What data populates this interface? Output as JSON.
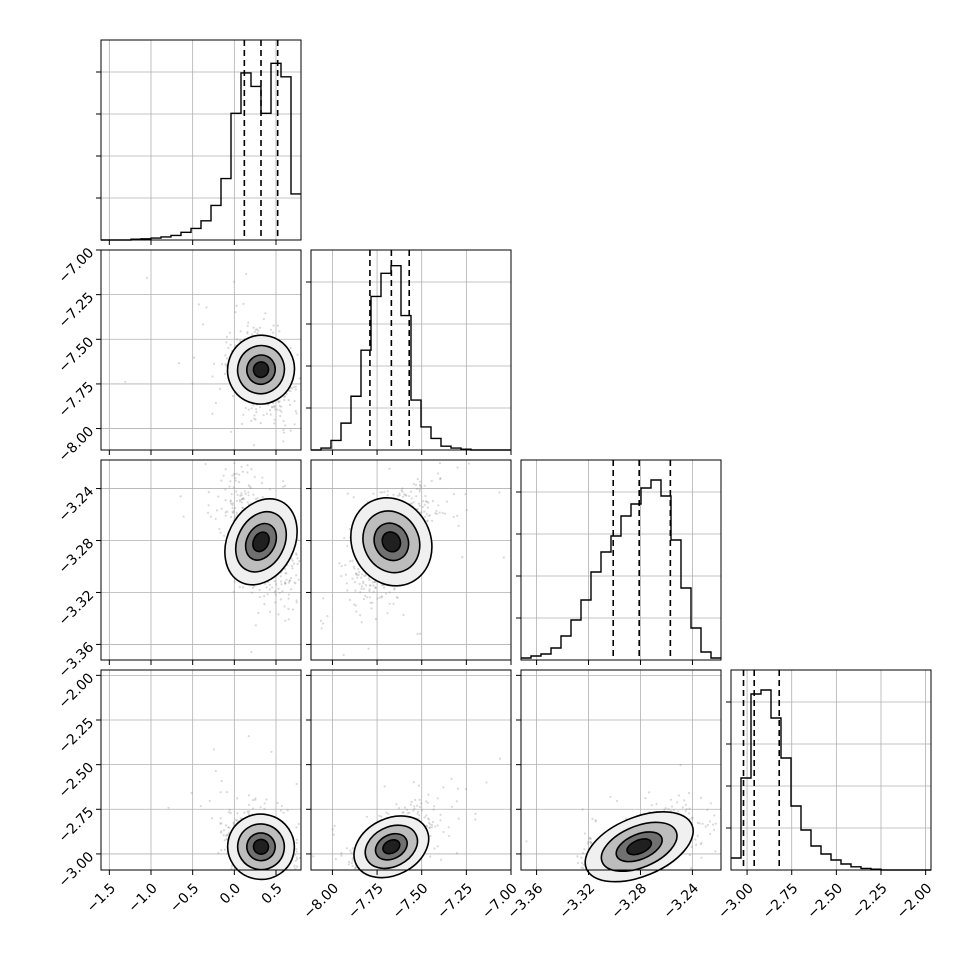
{
  "chart_data": {
    "type": "corner",
    "parameters": 4,
    "ranges": [
      [
        -1.6,
        0.8
      ],
      [
        -8.12,
        -7.0
      ],
      [
        -3.372,
        -3.218
      ],
      [
        -3.09,
        -1.97
      ]
    ],
    "ticks": [
      {
        "values": [
          -1.5,
          -1.0,
          -0.5,
          0.0,
          0.5
        ],
        "labels": [
          "−1.5",
          "−1.0",
          "−0.5",
          "0.0",
          "0.5"
        ]
      },
      {
        "values": [
          -8.0,
          -7.75,
          -7.5,
          -7.25,
          -7.0
        ],
        "labels": [
          "−8.00",
          "−7.75",
          "−7.50",
          "−7.25",
          "−7.00"
        ]
      },
      {
        "values": [
          -3.36,
          -3.32,
          -3.28,
          -3.24
        ],
        "labels": [
          "−3.36",
          "−3.32",
          "−3.28",
          "−3.24"
        ]
      },
      {
        "values": [
          -3.0,
          -2.75,
          -2.5,
          -2.25,
          -2.0
        ],
        "labels": [
          "−3.00",
          "−2.75",
          "−2.50",
          "−2.25",
          "−2.00"
        ]
      }
    ],
    "marginals": [
      {
        "bins": [
          -1.6,
          -1.48,
          -1.36,
          -1.24,
          -1.12,
          -1.0,
          -0.88,
          -0.76,
          -0.64,
          -0.52,
          -0.4,
          -0.28,
          -0.16,
          -0.04,
          0.08,
          0.2,
          0.32,
          0.44,
          0.56,
          0.68,
          0.8
        ],
        "counts": [
          0,
          0,
          0,
          0.2,
          0.3,
          0.5,
          0.8,
          1.2,
          2.0,
          3.0,
          5.0,
          9.0,
          16.0,
          33.0,
          43.5,
          40.0,
          33.0,
          46.0,
          42.5,
          12.0
        ],
        "quantiles": [
          0.12,
          0.32,
          0.52
        ],
        "ymax": 50
      },
      {
        "bins": [
          -8.12,
          -8.064,
          -8.008,
          -7.952,
          -7.896,
          -7.84,
          -7.784,
          -7.728,
          -7.672,
          -7.616,
          -7.56,
          -7.504,
          -7.448,
          -7.392,
          -7.336,
          -7.28,
          -7.224,
          -7.168,
          -7.112,
          -7.056,
          -7.0
        ],
        "counts": [
          0,
          0.5,
          2.5,
          7.0,
          14.0,
          26.0,
          40.0,
          46.0,
          48.0,
          35.0,
          13.0,
          6.0,
          3.0,
          1.0,
          0.5,
          0.2,
          0,
          0,
          0,
          0
        ],
        "quantiles": [
          -7.79,
          -7.67,
          -7.57
        ],
        "ymax": 50
      },
      {
        "bins": [
          -3.372,
          -3.3643,
          -3.3566,
          -3.3489,
          -3.3412,
          -3.3335,
          -3.3258,
          -3.3181,
          -3.3104,
          -3.3027,
          -3.295,
          -3.2873,
          -3.2796,
          -3.2719,
          -3.2642,
          -3.2565,
          -3.2488,
          -3.2411,
          -3.2334,
          -3.2257,
          -3.218
        ],
        "counts": [
          0.5,
          1,
          1.5,
          3,
          6,
          10,
          15,
          22,
          27,
          31,
          36,
          39,
          43,
          45,
          41,
          30,
          18,
          8,
          2,
          0.5
        ],
        "quantiles": [
          -3.301,
          -3.281,
          -3.257
        ],
        "ymax": 48
      },
      {
        "bins": [
          -3.09,
          -3.034,
          -2.978,
          -2.922,
          -2.866,
          -2.81,
          -2.754,
          -2.698,
          -2.642,
          -2.586,
          -2.53,
          -2.474,
          -2.418,
          -2.362,
          -2.306,
          -2.25,
          -2.194,
          -2.138,
          -2.082,
          -2.026,
          -1.97
        ],
        "counts": [
          3,
          23,
          44,
          45,
          38,
          28,
          16,
          10,
          6,
          4,
          2.5,
          1.5,
          0.8,
          0.4,
          0.2,
          0,
          0,
          0,
          0,
          0
        ],
        "quantiles": [
          -3.02,
          -2.96,
          -2.82
        ],
        "ymax": 48
      }
    ],
    "correlations": {
      "1-0": -0.35,
      "2-0": -0.6,
      "2-1": 0.6,
      "3-0": -0.25,
      "3-1": 0.6,
      "3-2": 0.5
    },
    "scatter_color": "#808080",
    "line_color": "#000000"
  }
}
